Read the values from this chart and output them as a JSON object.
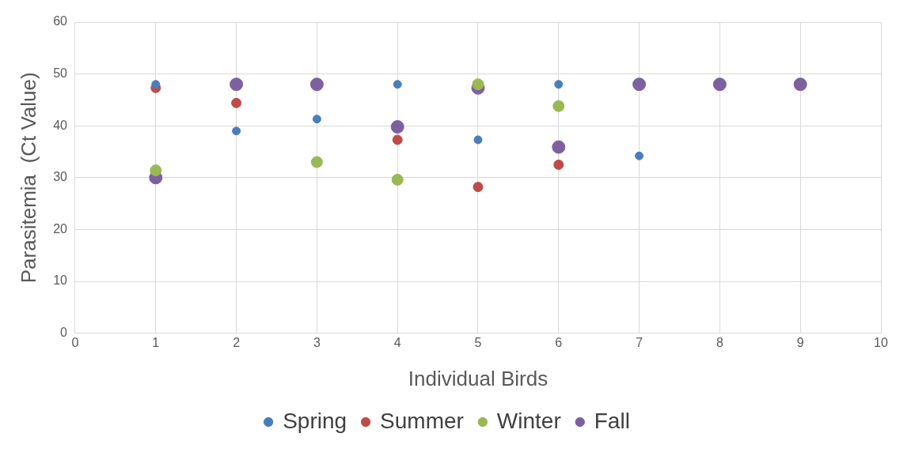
{
  "chart_data": {
    "type": "scatter",
    "xlabel": "Individual Birds",
    "ylabel": "Parasitemia  (Ct Value)",
    "xlim": [
      0,
      10
    ],
    "xticks": [
      0,
      1,
      2,
      3,
      4,
      5,
      6,
      7,
      8,
      9,
      10
    ],
    "ylim": [
      0,
      60
    ],
    "yticks": [
      0,
      10,
      20,
      30,
      40,
      50,
      60
    ],
    "grid": true,
    "legend": "bottom",
    "marker": "circle",
    "series": [
      {
        "name": "Spring",
        "color": "#4a7ebb",
        "x": [
          1,
          2,
          3,
          4,
          5,
          6,
          7
        ],
        "values": [
          48,
          39,
          41.3,
          48,
          37.3,
          48,
          34.2
        ]
      },
      {
        "name": "Summer",
        "color": "#be4b48",
        "x": [
          1,
          2,
          4,
          5,
          6
        ],
        "values": [
          47.3,
          44.4,
          37.3,
          28.2,
          32.5
        ]
      },
      {
        "name": "Winter",
        "color": "#98b954",
        "x": [
          1,
          3,
          4,
          5,
          6
        ],
        "values": [
          31.4,
          33,
          29.6,
          48,
          43.8
        ]
      },
      {
        "name": "Fall",
        "color": "#7d60a0",
        "x": [
          1,
          2,
          3,
          4,
          5,
          6,
          7,
          8,
          9
        ],
        "values": [
          30,
          48,
          48,
          39.8,
          47.3,
          35.9,
          48,
          48,
          48
        ]
      }
    ]
  }
}
